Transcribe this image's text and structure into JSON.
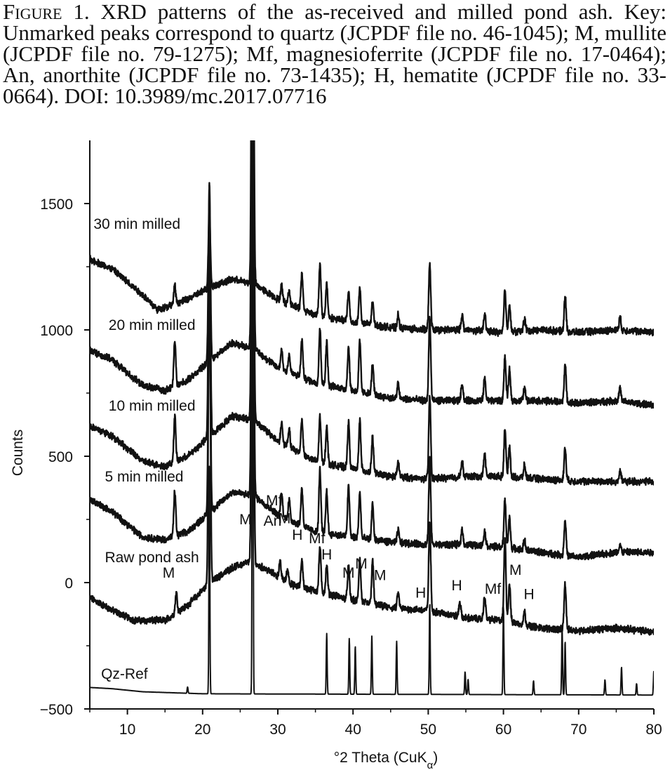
{
  "caption": {
    "lead": "Figure 1.",
    "text": " XRD patterns of the as-received and milled pond ash. Key: Unmarked peaks correspond to quartz (JCPDF file no. 46-1045); M, mullite (JCPDF file no. 79-1275); Mf, magnesioferrite (JCPDF file no. 17-0464); An, anorthite (JCPDF file no. 73-1435); H, hematite (JCPDF file no. 33-0664). DOI: 10.3989/mc.2017.07716"
  },
  "chart_data": {
    "type": "line",
    "xlabel": "°2 Theta (CuK",
    "xlabel_sub": "α",
    "xlabel_close": ")",
    "ylabel": "Counts",
    "xlim": [
      5,
      80
    ],
    "ylim": [
      -500,
      1750
    ],
    "xticks": [
      10,
      20,
      30,
      40,
      50,
      60,
      70,
      80
    ],
    "yticks": [
      -500,
      0,
      500,
      1000,
      1500
    ],
    "ytick_labels": [
      "−500",
      "0",
      "500",
      "1000",
      "1500"
    ],
    "series": [
      {
        "name": "Qz-Ref",
        "label_x": 6.5,
        "label_y": -380,
        "stick": true,
        "baseline": [
          [
            5,
            -415
          ],
          [
            8,
            -420
          ],
          [
            12,
            -432
          ],
          [
            20,
            -440
          ],
          [
            80,
            -445
          ]
        ],
        "peaks": [
          [
            18,
            25
          ],
          [
            20.9,
            900
          ],
          [
            26.65,
            2300
          ],
          [
            36.5,
            240
          ],
          [
            39.5,
            220
          ],
          [
            40.3,
            190
          ],
          [
            42.5,
            230
          ],
          [
            45.8,
            210
          ],
          [
            50.2,
            360
          ],
          [
            54.9,
            90
          ],
          [
            55.3,
            60
          ],
          [
            60.0,
            350
          ],
          [
            64.0,
            55
          ],
          [
            67.8,
            260
          ],
          [
            68.2,
            210
          ],
          [
            73.5,
            60
          ],
          [
            75.7,
            110
          ],
          [
            77.7,
            45
          ],
          [
            80,
            95
          ]
        ]
      },
      {
        "name": "Raw pond ash",
        "label_x": 7,
        "label_y": 80,
        "baseline": [
          [
            5,
            -60
          ],
          [
            8,
            -110
          ],
          [
            11,
            -150
          ],
          [
            15,
            -150
          ],
          [
            18,
            -90
          ],
          [
            21,
            0
          ],
          [
            24,
            60
          ],
          [
            26,
            80
          ],
          [
            28,
            60
          ],
          [
            32,
            -10
          ],
          [
            36,
            -40
          ],
          [
            40,
            -70
          ],
          [
            45,
            -100
          ],
          [
            50,
            -110
          ],
          [
            55,
            -140
          ],
          [
            60,
            -150
          ],
          [
            65,
            -180
          ],
          [
            70,
            -190
          ],
          [
            75,
            -180
          ],
          [
            80,
            -195
          ]
        ],
        "peaks": [
          [
            16.5,
            80
          ],
          [
            20.9,
            1300
          ],
          [
            26.65,
            2300
          ],
          [
            30.3,
            60
          ],
          [
            31.3,
            50
          ],
          [
            33.2,
            110
          ],
          [
            35.6,
            180
          ],
          [
            36.5,
            110
          ],
          [
            39.4,
            130
          ],
          [
            40.9,
            170
          ],
          [
            42.6,
            170
          ],
          [
            46,
            60
          ],
          [
            50.2,
            350
          ],
          [
            54.2,
            60
          ],
          [
            57.5,
            90
          ],
          [
            60.2,
            330
          ],
          [
            60.8,
            150
          ],
          [
            62.8,
            50
          ],
          [
            68.2,
            180
          ]
        ]
      },
      {
        "name": "5 min milled",
        "label_x": 7,
        "label_y": 400,
        "baseline": [
          [
            5,
            330
          ],
          [
            8,
            280
          ],
          [
            12,
            180
          ],
          [
            15,
            170
          ],
          [
            18,
            200
          ],
          [
            21,
            280
          ],
          [
            24,
            360
          ],
          [
            27,
            340
          ],
          [
            30,
            270
          ],
          [
            35,
            200
          ],
          [
            40,
            180
          ],
          [
            45,
            160
          ],
          [
            50,
            150
          ],
          [
            55,
            150
          ],
          [
            60,
            140
          ],
          [
            65,
            120
          ],
          [
            70,
            100
          ],
          [
            75,
            120
          ],
          [
            80,
            120
          ]
        ],
        "peaks": [
          [
            16.3,
            180
          ],
          [
            20.9,
            1100
          ],
          [
            26.65,
            2300
          ],
          [
            30.5,
            90
          ],
          [
            31.5,
            80
          ],
          [
            33.2,
            150
          ],
          [
            35.6,
            250
          ],
          [
            36.5,
            170
          ],
          [
            39.4,
            200
          ],
          [
            40.9,
            180
          ],
          [
            42.6,
            140
          ],
          [
            46,
            50
          ],
          [
            50.2,
            340
          ],
          [
            54.5,
            60
          ],
          [
            57.5,
            60
          ],
          [
            60.2,
            190
          ],
          [
            60.8,
            120
          ],
          [
            62.8,
            40
          ],
          [
            68.2,
            140
          ],
          [
            75.5,
            30
          ]
        ]
      },
      {
        "name": "10 min milled",
        "label_x": 7.5,
        "label_y": 680,
        "baseline": [
          [
            5,
            620
          ],
          [
            8,
            580
          ],
          [
            12,
            480
          ],
          [
            15,
            460
          ],
          [
            18,
            500
          ],
          [
            21,
            580
          ],
          [
            24,
            660
          ],
          [
            27,
            640
          ],
          [
            30,
            560
          ],
          [
            35,
            480
          ],
          [
            40,
            450
          ],
          [
            45,
            420
          ],
          [
            50,
            410
          ],
          [
            55,
            420
          ],
          [
            60,
            420
          ],
          [
            65,
            410
          ],
          [
            70,
            400
          ],
          [
            75,
            400
          ],
          [
            80,
            400
          ]
        ],
        "peaks": [
          [
            16.3,
            180
          ],
          [
            20.9,
            1000
          ],
          [
            26.65,
            2300
          ],
          [
            30.5,
            80
          ],
          [
            31.5,
            70
          ],
          [
            33.2,
            140
          ],
          [
            35.6,
            180
          ],
          [
            36.5,
            150
          ],
          [
            39.4,
            180
          ],
          [
            40.9,
            200
          ],
          [
            42.6,
            140
          ],
          [
            46,
            60
          ],
          [
            50.2,
            330
          ],
          [
            54.5,
            60
          ],
          [
            57.5,
            90
          ],
          [
            60.2,
            190
          ],
          [
            60.8,
            120
          ],
          [
            62.8,
            50
          ],
          [
            68.2,
            130
          ],
          [
            75.5,
            40
          ]
        ]
      },
      {
        "name": "20 min milled",
        "label_x": 7.5,
        "label_y": 1000,
        "baseline": [
          [
            5,
            920
          ],
          [
            8,
            880
          ],
          [
            12,
            780
          ],
          [
            15,
            760
          ],
          [
            18,
            800
          ],
          [
            21,
            880
          ],
          [
            24,
            950
          ],
          [
            27,
            920
          ],
          [
            30,
            850
          ],
          [
            35,
            790
          ],
          [
            40,
            760
          ],
          [
            45,
            730
          ],
          [
            50,
            720
          ],
          [
            55,
            720
          ],
          [
            60,
            720
          ],
          [
            65,
            720
          ],
          [
            70,
            710
          ],
          [
            75,
            720
          ],
          [
            80,
            700
          ]
        ],
        "peaks": [
          [
            16.3,
            180
          ],
          [
            20.9,
            700
          ],
          [
            26.65,
            2300
          ],
          [
            30.5,
            80
          ],
          [
            31.5,
            70
          ],
          [
            33.2,
            150
          ],
          [
            35.6,
            220
          ],
          [
            36.5,
            170
          ],
          [
            39.4,
            170
          ],
          [
            40.9,
            200
          ],
          [
            42.6,
            120
          ],
          [
            46,
            60
          ],
          [
            50.2,
            330
          ],
          [
            54.5,
            70
          ],
          [
            57.5,
            90
          ],
          [
            60.2,
            170
          ],
          [
            60.8,
            120
          ],
          [
            62.8,
            50
          ],
          [
            68.2,
            150
          ],
          [
            75.5,
            50
          ]
        ]
      },
      {
        "name": "30 min milled",
        "label_x": 5.5,
        "label_y": 1400,
        "baseline": [
          [
            5,
            1280
          ],
          [
            8,
            1240
          ],
          [
            12,
            1140
          ],
          [
            14,
            1080
          ],
          [
            18,
            1120
          ],
          [
            21,
            1170
          ],
          [
            24,
            1200
          ],
          [
            27,
            1180
          ],
          [
            30,
            1120
          ],
          [
            35,
            1060
          ],
          [
            40,
            1030
          ],
          [
            45,
            1010
          ],
          [
            50,
            1000
          ],
          [
            55,
            1000
          ],
          [
            60,
            990
          ],
          [
            65,
            1000
          ],
          [
            70,
            990
          ],
          [
            75,
            1000
          ],
          [
            80,
            990
          ]
        ],
        "peaks": [
          [
            16.3,
            70
          ],
          [
            20.9,
            300
          ],
          [
            26.65,
            2300
          ],
          [
            30.5,
            60
          ],
          [
            31.5,
            50
          ],
          [
            33.2,
            140
          ],
          [
            35.6,
            200
          ],
          [
            36.5,
            130
          ],
          [
            39.4,
            120
          ],
          [
            40.9,
            140
          ],
          [
            42.6,
            90
          ],
          [
            46,
            50
          ],
          [
            50.2,
            260
          ],
          [
            54.5,
            60
          ],
          [
            57.5,
            70
          ],
          [
            60.2,
            170
          ],
          [
            60.8,
            110
          ],
          [
            62.8,
            50
          ],
          [
            68.2,
            140
          ],
          [
            75.5,
            50
          ]
        ]
      }
    ],
    "annotations": [
      {
        "text": "M",
        "x": 25.7,
        "y": 230
      },
      {
        "text": "Mf",
        "x": 29.5,
        "y": 305
      },
      {
        "text": "An",
        "x": 29.3,
        "y": 225
      },
      {
        "text": "M",
        "x": 30.9,
        "y": 235
      },
      {
        "text": "H",
        "x": 32.6,
        "y": 170
      },
      {
        "text": "Mf",
        "x": 35.2,
        "y": 155
      },
      {
        "text": "H",
        "x": 36.5,
        "y": 92
      },
      {
        "text": "M",
        "x": 15.5,
        "y": 20
      },
      {
        "text": "M",
        "x": 39.4,
        "y": 20
      },
      {
        "text": "M",
        "x": 41.1,
        "y": 55
      },
      {
        "text": "M",
        "x": 43.6,
        "y": 10
      },
      {
        "text": "H",
        "x": 49.0,
        "y": -60
      },
      {
        "text": "H",
        "x": 53.8,
        "y": -30
      },
      {
        "text": "Mf",
        "x": 58.6,
        "y": -45
      },
      {
        "text": "M",
        "x": 61.6,
        "y": 30
      },
      {
        "text": "H",
        "x": 63.4,
        "y": -65
      }
    ]
  }
}
